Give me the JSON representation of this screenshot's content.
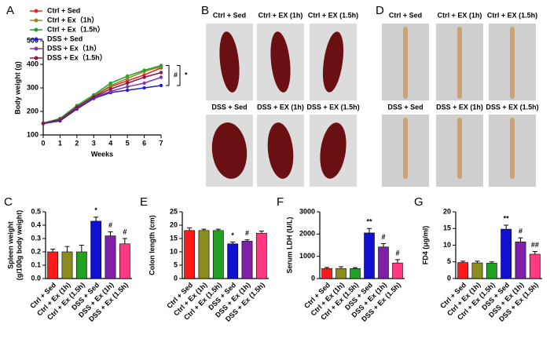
{
  "chart_data": [
    {
      "type": "line",
      "letter": "A",
      "xlabel": "Weeks",
      "ylabel": "Body weight (g)",
      "x": [
        0,
        1,
        2,
        3,
        4,
        5,
        6,
        7
      ],
      "xlim": [
        0,
        7
      ],
      "xticks": [
        0,
        1,
        2,
        3,
        4,
        5,
        6,
        7
      ],
      "ylim": [
        100,
        500
      ],
      "yticks": [
        100,
        200,
        300,
        400,
        500
      ],
      "series": [
        {
          "name": "Ctrl + Sed",
          "color": "#e8262a",
          "values": [
            150,
            165,
            215,
            265,
            305,
            330,
            355,
            385
          ]
        },
        {
          "name": "Ctrl + Ex（1h）",
          "color": "#8c8c1e",
          "values": [
            150,
            168,
            220,
            265,
            310,
            340,
            370,
            390
          ]
        },
        {
          "name": "Ctrl + Ex（1.5h）",
          "color": "#2ca02c",
          "values": [
            150,
            170,
            225,
            270,
            320,
            350,
            375,
            395
          ]
        },
        {
          "name": "DSS + Sed",
          "color": "#2020d0",
          "values": [
            148,
            160,
            210,
            255,
            280,
            290,
            300,
            310
          ]
        },
        {
          "name": "DSS + Ex（1h）",
          "color": "#8a35b0",
          "values": [
            150,
            165,
            215,
            260,
            285,
            305,
            320,
            345
          ]
        },
        {
          "name": "DSS + Ex（1.5h）",
          "color": "#8b1a4a",
          "values": [
            150,
            165,
            218,
            262,
            295,
            320,
            345,
            365
          ]
        }
      ],
      "annotations": [
        "#",
        "*"
      ]
    },
    {
      "type": "bar",
      "letter": "C",
      "ylabel": [
        "Spleen weight",
        "(g/100g body weight)"
      ],
      "categories": [
        "Ctrl + Sed",
        "Ctrl + Ex (1h)",
        "Ctrl + Ex (1.5h)",
        "DSS + Sed",
        "DSS + Ex (1h)",
        "DSS + Ex (1.5h)"
      ],
      "values": [
        0.2,
        0.2,
        0.2,
        0.43,
        0.32,
        0.26
      ],
      "errors": [
        0.02,
        0.04,
        0.05,
        0.03,
        0.03,
        0.04
      ],
      "bar_labels": [
        null,
        null,
        null,
        "*",
        "#",
        "#"
      ],
      "colors": [
        "#ff1a1a",
        "#8c8c1e",
        "#22a022",
        "#1010d0",
        "#8020a8",
        "#ff3a80"
      ],
      "ylim": [
        0,
        0.5
      ],
      "yticks": [
        {
          "value": 0,
          "label": "0.0"
        },
        0.1,
        0.2,
        0.3,
        0.4,
        0.5
      ]
    },
    {
      "type": "bar",
      "letter": "E",
      "ylabel": [
        "Colon length (cm)"
      ],
      "categories": [
        "Ctrl + Sed",
        "Ctrl + Ex (1h)",
        "Ctrl + Ex (1.5h)",
        "DSS + Sed",
        "DSS + Ex (1h)",
        "DSS + Ex (1.5h)"
      ],
      "values": [
        18,
        18,
        18,
        13,
        14,
        17
      ],
      "errors": [
        1,
        0.5,
        0.5,
        0.7,
        0.5,
        0.8
      ],
      "bar_labels": [
        null,
        null,
        null,
        "*",
        "#",
        null
      ],
      "colors": [
        "#ff1a1a",
        "#8c8c1e",
        "#22a022",
        "#1010d0",
        "#8020a8",
        "#ff3a80"
      ],
      "ylim": [
        0,
        25
      ],
      "yticks": [
        0,
        5,
        10,
        15,
        20,
        25
      ]
    },
    {
      "type": "bar",
      "letter": "F",
      "ylabel": [
        "Serum LDH (U/L)"
      ],
      "categories": [
        "Ctrl + Sed",
        "Ctrl + Ex (1h)",
        "Ctrl + Ex (1.5h)",
        "DSS + Sed",
        "DSS + Ex (1h)",
        "DSS + Ex (1.5h)"
      ],
      "values": [
        450,
        450,
        450,
        2050,
        1420,
        700
      ],
      "errors": [
        50,
        80,
        40,
        200,
        150,
        150
      ],
      "bar_labels": [
        null,
        null,
        null,
        "**",
        "#",
        "#"
      ],
      "colors": [
        "#ff1a1a",
        "#8c8c1e",
        "#22a022",
        "#1010d0",
        "#8020a8",
        "#ff3a80"
      ],
      "ylim": [
        0,
        3000
      ],
      "yticks": [
        0,
        1000,
        2000,
        3000
      ]
    },
    {
      "type": "bar",
      "letter": "G",
      "ylabel": [
        "FD4 (μg/ml)"
      ],
      "categories": [
        "Ctrl + Sed",
        "Ctrl + Ex (1h)",
        "Ctrl + Ex (1.5h)",
        "DSS + Sed",
        "DSS + Ex (1h)",
        "DSS + Ex (1.5h)"
      ],
      "values": [
        4.8,
        4.7,
        4.6,
        14.8,
        11,
        7.3
      ],
      "errors": [
        0.4,
        0.5,
        0.4,
        1.2,
        1.2,
        0.8
      ],
      "bar_labels": [
        null,
        null,
        null,
        "**",
        "#",
        "##"
      ],
      "colors": [
        "#ff1a1a",
        "#8c8c1e",
        "#22a022",
        "#1010d0",
        "#8020a8",
        "#ff3a80"
      ],
      "ylim": [
        0,
        20
      ],
      "yticks": [
        0,
        5,
        10,
        15,
        20
      ]
    }
  ],
  "photo_panels": [
    {
      "letter": "B",
      "labels": [
        "Ctrl + Sed",
        "Ctrl + EX (1h)",
        "Ctrl + EX (1.5h)",
        "DSS + Sed",
        "DSS + EX (1h)",
        "DSS + EX (1.5h)"
      ]
    },
    {
      "letter": "D",
      "labels": [
        "Ctrl + Sed",
        "Ctrl + EX (1h)",
        "Ctrl + EX (1.5h)",
        "DSS + Sed",
        "DSS + EX (1h)",
        "DSS + EX (1.5h)"
      ]
    }
  ]
}
